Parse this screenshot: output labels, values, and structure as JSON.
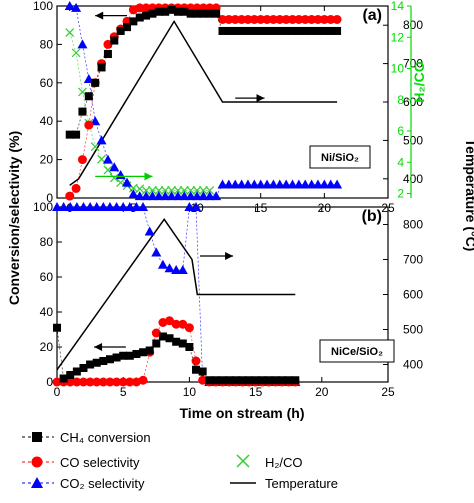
{
  "figure": {
    "y_left_label": "Conversion/selectivity (%)",
    "y_right_temp_label": "Temperature (°C)",
    "x_label": "Time on stream (h)",
    "colors": {
      "ch4": "#000000",
      "co": "#ff0000",
      "co2": "#0000ff",
      "h2co": "#33cc33",
      "temp": "#000000",
      "h2co_axis": "#00dd00"
    }
  },
  "legend": {
    "ch4": "CH₄ conversion",
    "co": "CO selectivity",
    "co2": "CO₂ selectivity",
    "h2co": "H₂/CO",
    "temp": "Temperature"
  },
  "chart_data": [
    {
      "type": "line",
      "panel_label": "(a)",
      "catalyst": "Ni/SiO₂",
      "xlim": [
        -1,
        25
      ],
      "x_ticks": [
        0,
        5,
        10,
        15,
        20,
        25
      ],
      "ylim_left": [
        0,
        100
      ],
      "y_left_ticks": [
        0,
        20,
        40,
        60,
        80,
        100
      ],
      "ylim_temp": [
        350,
        850
      ],
      "y_temp_ticks": [
        400,
        500,
        600,
        700,
        800
      ],
      "ylim_h2co": [
        1.714,
        14
      ],
      "y_h2co_ticks": [
        2,
        4,
        6,
        8,
        10,
        12,
        14
      ],
      "y_h2co_label": "H₂/CO",
      "series": [
        {
          "name": "CH₄ conversion",
          "axis": "left",
          "x": [
            0,
            0.5,
            1,
            1.5,
            2,
            2.5,
            3,
            3.5,
            4,
            4.5,
            5,
            5.5,
            6,
            6.5,
            7,
            7.5,
            8,
            8.5,
            9,
            9.5,
            10,
            10.5,
            11,
            11.5,
            12,
            12.5,
            13,
            13.5,
            14,
            14.5,
            15,
            15.5,
            16,
            16.5,
            17,
            17.5,
            18,
            18.5,
            19,
            19.5,
            20,
            20.5,
            21
          ],
          "y": [
            33,
            33,
            45,
            53,
            60,
            68,
            75,
            82,
            87,
            89,
            92,
            94,
            95,
            96,
            97,
            97,
            98,
            97,
            97,
            96,
            96,
            96,
            96,
            96,
            87,
            87,
            87,
            87,
            87,
            87,
            87,
            87,
            87,
            87,
            87,
            87,
            87,
            87,
            87,
            87,
            87,
            87,
            87
          ]
        },
        {
          "name": "CO selectivity",
          "axis": "left",
          "x": [
            0,
            0.5,
            1,
            1.5,
            2,
            2.5,
            3,
            3.5,
            4,
            4.5,
            5,
            5.5,
            6,
            6.5,
            7,
            7.5,
            8,
            8.5,
            9,
            9.5,
            10,
            10.5,
            11,
            11.5,
            12,
            12.5,
            13,
            13.5,
            14,
            14.5,
            15,
            15.5,
            16,
            16.5,
            17,
            17.5,
            18,
            18.5,
            19,
            19.5,
            20,
            20.5,
            21
          ],
          "y": [
            1,
            5,
            20,
            38,
            60,
            70,
            80,
            84,
            88,
            92,
            98,
            99,
            99,
            99,
            99,
            99,
            99,
            99,
            99,
            99,
            99,
            99,
            99,
            99,
            93,
            93,
            93,
            93,
            93,
            93,
            93,
            93,
            93,
            93,
            93,
            93,
            93,
            93,
            93,
            93,
            93,
            93,
            93
          ]
        },
        {
          "name": "CO₂ selectivity",
          "axis": "left",
          "x": [
            0,
            0.5,
            1,
            1.5,
            2,
            2.5,
            3,
            3.5,
            4,
            4.5,
            5,
            5.5,
            6,
            6.5,
            7,
            7.5,
            8,
            8.5,
            9,
            9.5,
            10,
            10.5,
            11,
            11.5,
            12,
            12.5,
            13,
            13.5,
            14,
            14.5,
            15,
            15.5,
            16,
            16.5,
            17,
            17.5,
            18,
            18.5,
            19,
            19.5,
            20,
            20.5,
            21
          ],
          "y": [
            100,
            99,
            80,
            62,
            40,
            30,
            20,
            16,
            12,
            8,
            2,
            1,
            1,
            1,
            1,
            1,
            1,
            1,
            1,
            1,
            1,
            1,
            1,
            1,
            7,
            7,
            7,
            7,
            7,
            7,
            7,
            7,
            7,
            7,
            7,
            7,
            7,
            7,
            7,
            7,
            7,
            7,
            7
          ]
        },
        {
          "name": "H₂/CO",
          "axis": "h2co",
          "x": [
            0,
            0.5,
            1,
            1.5,
            2,
            2.5,
            3,
            3.5,
            4,
            4.5,
            5,
            5.5,
            6,
            6.5,
            7,
            7.5,
            8,
            8.5,
            9,
            9.5,
            10,
            10.5,
            11
          ],
          "y": [
            12.3,
            11.0,
            8.5,
            6.5,
            5.0,
            4.2,
            3.5,
            3.0,
            2.7,
            2.5,
            2.35,
            2.3,
            2.2,
            2.2,
            2.2,
            2.2,
            2.2,
            2.2,
            2.2,
            2.2,
            2.2,
            2.2,
            2.2
          ]
        },
        {
          "name": "Temperature",
          "axis": "temp",
          "x": [
            0,
            0.7,
            8.2,
            12,
            21
          ],
          "y": [
            383,
            400,
            810,
            600,
            600
          ]
        }
      ],
      "arrows": [
        {
          "series": "CO selectivity",
          "direction": "left",
          "x_from": 4.5,
          "x_to": 2,
          "y": 95,
          "axis": "left",
          "color": "#000000"
        },
        {
          "series": "Temperature",
          "direction": "right",
          "x_from": 13,
          "x_to": 15.3,
          "y": 610,
          "axis": "temp",
          "color": "#000000"
        },
        {
          "series": "H₂/CO",
          "direction": "right",
          "x_from": 2,
          "x_to": 6.5,
          "y": 3.1,
          "axis": "h2co",
          "color": "#00cc00"
        }
      ]
    },
    {
      "type": "line",
      "panel_label": "(b)",
      "catalyst": "NiCe/SiO₂",
      "xlim": [
        0,
        25
      ],
      "x_ticks": [
        0,
        5,
        10,
        15,
        20,
        25
      ],
      "ylim_left": [
        0,
        100
      ],
      "y_left_ticks": [
        0,
        20,
        40,
        60,
        80,
        100
      ],
      "ylim_temp": [
        350,
        850
      ],
      "y_temp_ticks": [
        400,
        500,
        600,
        700,
        800
      ],
      "series": [
        {
          "name": "CH₄ conversion",
          "axis": "left",
          "x": [
            0,
            0.5,
            1,
            1.5,
            2,
            2.5,
            3,
            3.5,
            4,
            4.5,
            5,
            5.5,
            6,
            6.5,
            7,
            7.5,
            8,
            8.5,
            9,
            9.5,
            10,
            10.5,
            11,
            11.5,
            12,
            12.5,
            13,
            13.5,
            14,
            14.5,
            15,
            15.5,
            16,
            16.5,
            17,
            17.5,
            18
          ],
          "y": [
            31,
            2,
            4,
            6,
            8,
            10,
            11,
            12,
            13,
            14,
            15,
            15,
            16,
            17,
            18,
            22,
            26,
            25,
            23,
            22,
            20,
            7,
            6,
            1,
            1,
            1,
            1,
            1,
            1,
            1,
            1,
            1,
            1,
            1,
            1,
            1,
            1
          ]
        },
        {
          "name": "CO selectivity",
          "axis": "left",
          "x": [
            0,
            0.5,
            1,
            1.5,
            2,
            2.5,
            3,
            3.5,
            4,
            4.5,
            5,
            5.5,
            6,
            6.5,
            7,
            7.5,
            8,
            8.5,
            9,
            9.5,
            10,
            10.5,
            11,
            11.5,
            12,
            12.5,
            13,
            13.5,
            14,
            14.5,
            15,
            15.5,
            16,
            16.5,
            17,
            17.5,
            18
          ],
          "y": [
            0,
            0,
            0,
            0,
            0,
            0,
            0,
            0,
            0,
            0,
            0,
            0,
            0,
            1,
            17,
            28,
            34,
            35,
            33,
            33,
            31,
            12,
            1,
            0,
            0,
            0,
            0,
            0,
            0,
            0,
            0,
            0,
            0,
            0,
            0,
            0,
            0
          ]
        },
        {
          "name": "CO₂ selectivity",
          "axis": "left",
          "x": [
            0,
            0.5,
            1,
            1.5,
            2,
            2.5,
            3,
            3.5,
            4,
            4.5,
            5,
            5.5,
            6,
            6.5,
            7,
            7.5,
            8,
            8.5,
            9,
            9.5,
            10,
            10.5,
            11,
            11.5,
            12,
            12.5,
            13,
            13.5,
            14,
            14.5,
            15,
            15.5,
            16,
            16.5,
            17,
            17.5,
            18
          ],
          "y": [
            100,
            100,
            100,
            100,
            100,
            100,
            100,
            100,
            100,
            100,
            100,
            100,
            100,
            100,
            86,
            74,
            67,
            65,
            64,
            64,
            100,
            100,
            2,
            0,
            0,
            0,
            0,
            0,
            0,
            0,
            0,
            0,
            0,
            0,
            0,
            0,
            0
          ]
        },
        {
          "name": "Temperature",
          "axis": "temp",
          "x": [
            0,
            8.1,
            10.2,
            10.6,
            18
          ],
          "y": [
            385,
            815,
            700,
            600,
            600
          ]
        }
      ],
      "arrows": [
        {
          "series": "CH₄ conversion",
          "direction": "left",
          "x_from": 5.2,
          "x_to": 2.8,
          "y": 20,
          "axis": "left",
          "color": "#000000"
        },
        {
          "series": "Temperature",
          "direction": "right",
          "x_from": 10.8,
          "x_to": 13.3,
          "y": 710,
          "axis": "temp",
          "color": "#000000"
        }
      ]
    }
  ]
}
